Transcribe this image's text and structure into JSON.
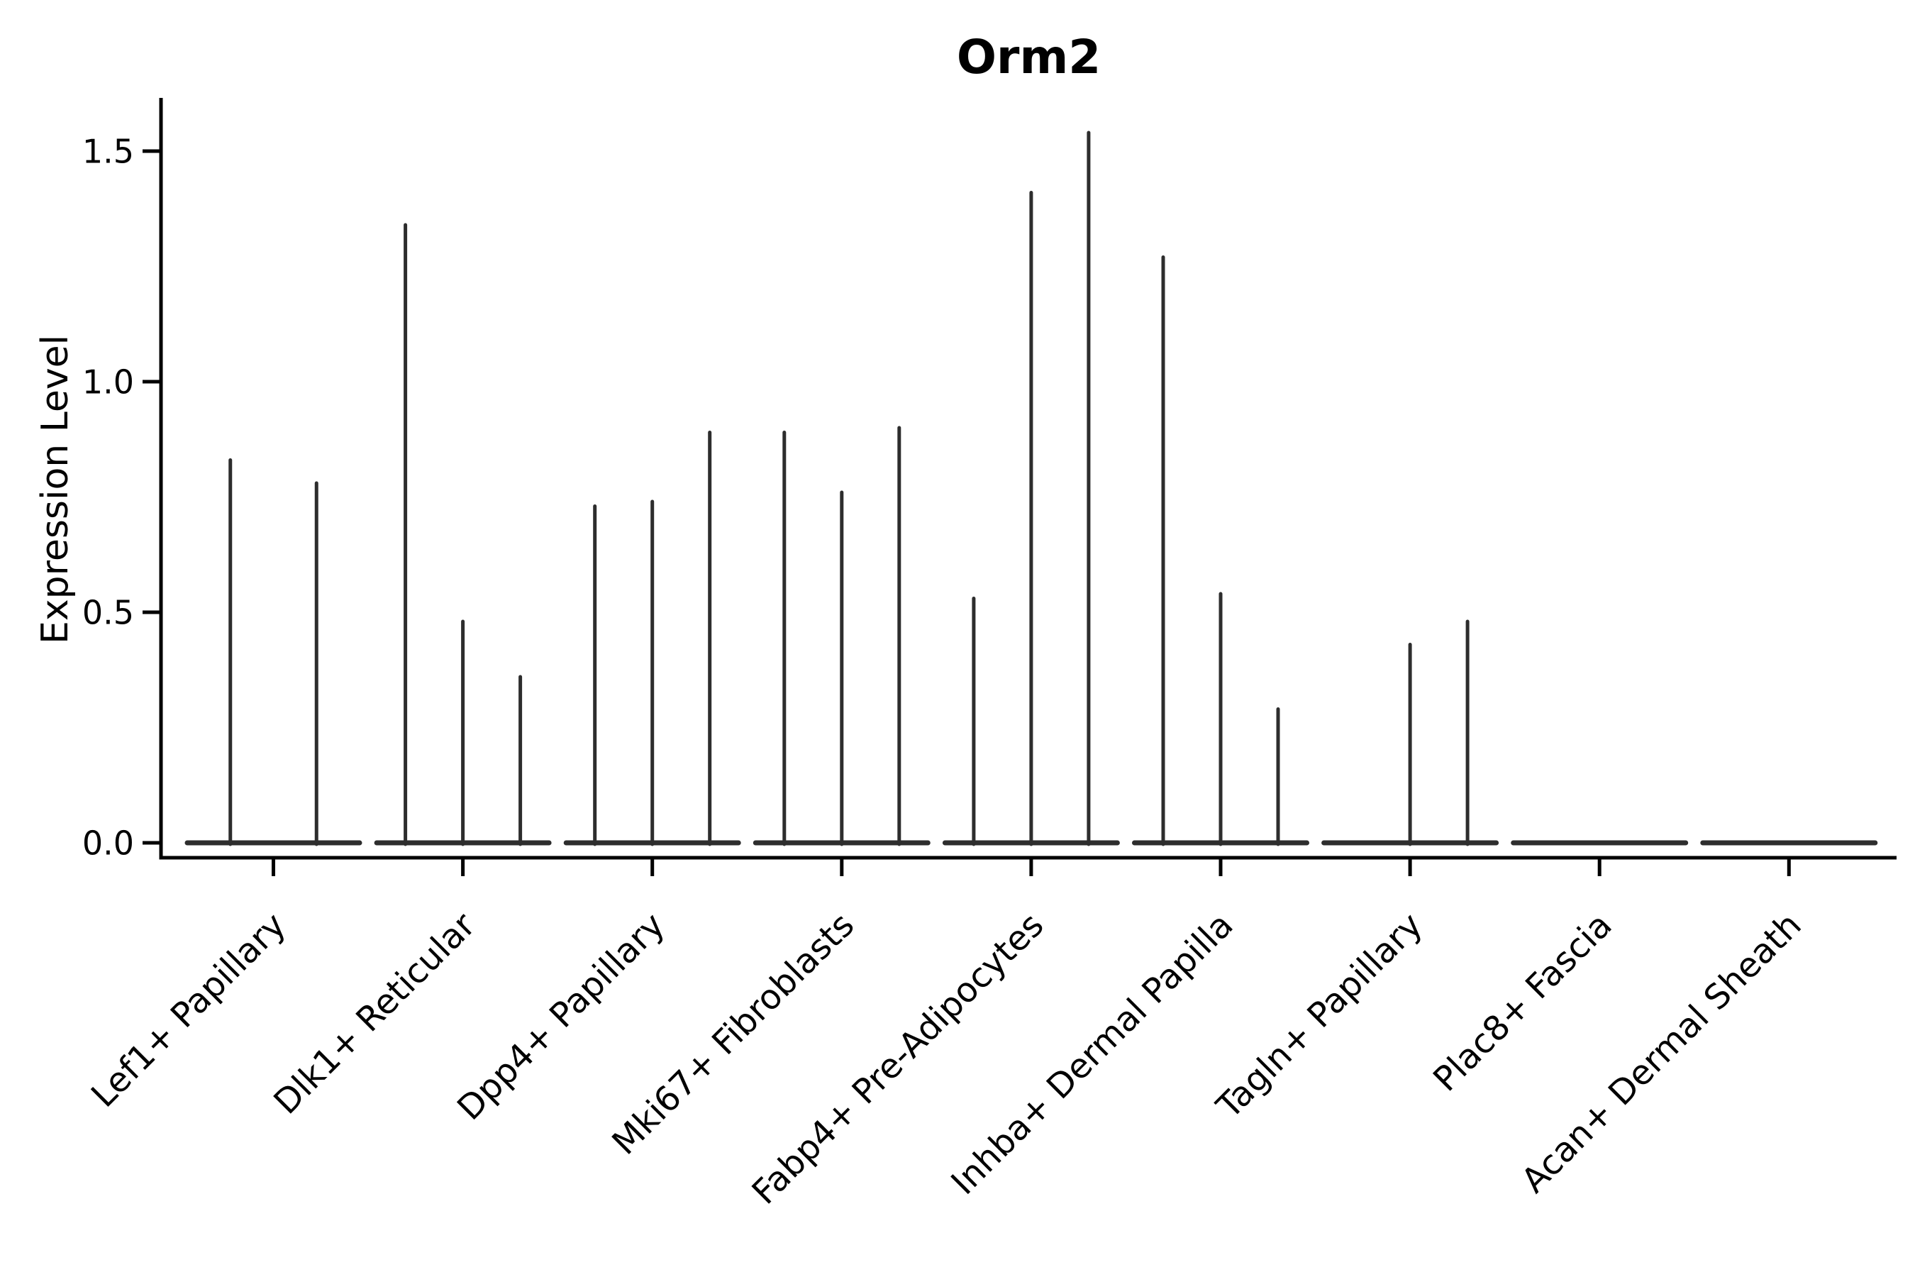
{
  "figure": {
    "background": "#ffffff"
  },
  "chart_data": {
    "type": "violin",
    "title": "Orm2",
    "ylabel": "Expression Level",
    "xlabel": "",
    "ylim": [
      0,
      1.57
    ],
    "yticks": [
      {
        "value": 0.0,
        "label": "0.0"
      },
      {
        "value": 0.5,
        "label": "0.5"
      },
      {
        "value": 1.0,
        "label": "1.0"
      },
      {
        "value": 1.5,
        "label": "1.5"
      }
    ],
    "grid": false,
    "legend": "none",
    "violin_color": "#2d2d2d",
    "axis_color": "#000000",
    "categories": [
      "Lef1+ Papillary",
      "Dlk1+ Reticular",
      "Dpp4+ Papillary",
      "Mki67+ Fibroblasts",
      "Fabp4+ Pre-Adipocytes",
      "Inhba+ Dermal Papilla",
      "Tagln+ Papillary",
      "Plac8+ Fascia",
      "Acan+ Dermal Sheath"
    ],
    "groups": [
      {
        "category": "Lef1+ Papillary",
        "violin_maxima": [
          0.83,
          0.78
        ]
      },
      {
        "category": "Dlk1+ Reticular",
        "violin_maxima": [
          1.34,
          0.48,
          0.36
        ]
      },
      {
        "category": "Dpp4+ Papillary",
        "violin_maxima": [
          0.73,
          0.74,
          0.89
        ]
      },
      {
        "category": "Mki67+ Fibroblasts",
        "violin_maxima": [
          0.89,
          0.76,
          0.9
        ]
      },
      {
        "category": "Fabp4+ Pre-Adipocytes",
        "violin_maxima": [
          0.53,
          1.41,
          1.54
        ]
      },
      {
        "category": "Inhba+ Dermal Papilla",
        "violin_maxima": [
          1.27,
          0.54,
          0.29
        ]
      },
      {
        "category": "Tagln+ Papillary",
        "violin_maxima": [
          0.0,
          0.43,
          0.48
        ]
      },
      {
        "category": "Plac8+ Fascia",
        "violin_maxima": [
          0.0,
          0.0,
          0.0
        ]
      },
      {
        "category": "Acan+ Dermal Sheath",
        "violin_maxima": [
          0.0,
          0.0,
          0.0
        ]
      }
    ]
  }
}
